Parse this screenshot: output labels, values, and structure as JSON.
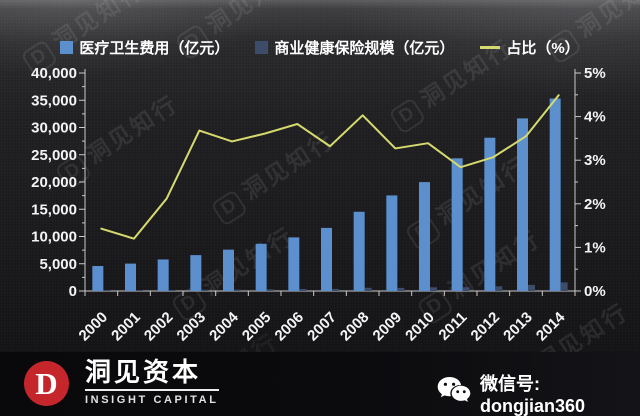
{
  "chart_data": {
    "type": "bar+line",
    "title": "",
    "categories": [
      "2000",
      "2001",
      "2002",
      "2003",
      "2004",
      "2005",
      "2006",
      "2007",
      "2008",
      "2009",
      "2010",
      "2011",
      "2012",
      "2013",
      "2014"
    ],
    "series": [
      {
        "name": "医疗卫生费用（亿元）",
        "type": "bar",
        "axis": "left",
        "color": "#5b8fce",
        "values": [
          4587,
          5026,
          5790,
          6584,
          7590,
          8660,
          9843,
          11574,
          14535,
          17542,
          19980,
          24346,
          28119,
          31669,
          35312
        ]
      },
      {
        "name": "商业健康保险规模（亿元）",
        "type": "bar",
        "axis": "left",
        "color": "#3d4c68",
        "values": [
          66,
          60,
          123,
          242,
          260,
          312,
          377,
          384,
          586,
          574,
          677,
          692,
          863,
          1124,
          1587
        ]
      },
      {
        "name": "占比（%）",
        "type": "line",
        "axis": "right",
        "color": "#d6da6e",
        "values": [
          1.43,
          1.2,
          2.12,
          3.68,
          3.43,
          3.61,
          3.83,
          3.32,
          4.03,
          3.27,
          3.39,
          2.84,
          3.07,
          3.55,
          4.49
        ]
      }
    ],
    "left_axis": {
      "min": 0,
      "max": 40000,
      "step": 5000,
      "labels": [
        "0",
        "5,000",
        "10,000",
        "15,000",
        "20,000",
        "25,000",
        "30,000",
        "35,000",
        "40,000"
      ]
    },
    "right_axis": {
      "min": 0,
      "max": 5,
      "step": 1,
      "labels": [
        "0%",
        "1%",
        "2%",
        "3%",
        "4%",
        "5%"
      ]
    },
    "grid": false,
    "legend_position": "top"
  },
  "watermark": {
    "logo_letter": "D",
    "text": "洞见知行"
  },
  "footer": {
    "logo_letter": "D",
    "logo_color": "#c5262c",
    "brand_cn": "洞见资本",
    "brand_en": "INSIGHT CAPITAL",
    "wechat_label": "微信号: dongjian360"
  }
}
